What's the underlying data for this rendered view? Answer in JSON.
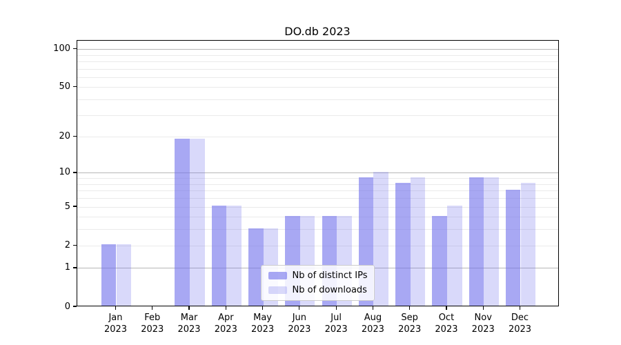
{
  "chart_data": {
    "type": "bar",
    "title": "DO.db 2023",
    "year": "2023",
    "categories": [
      "Jan",
      "Feb",
      "Mar",
      "Apr",
      "May",
      "Jun",
      "Jul",
      "Aug",
      "Sep",
      "Oct",
      "Nov",
      "Dec"
    ],
    "series": [
      {
        "name": "Nb of distinct IPs",
        "values": [
          2,
          0,
          19,
          5,
          3,
          4,
          4,
          9,
          8,
          4,
          9,
          7
        ],
        "color": "rgba(110,110,235,0.6)"
      },
      {
        "name": "Nb of downloads",
        "values": [
          2,
          0,
          19,
          5,
          3,
          4,
          4,
          10,
          9,
          5,
          9,
          8
        ],
        "color": "rgba(110,110,235,0.26)"
      }
    ],
    "xlabel": "",
    "ylabel": "",
    "yscale": "log1p",
    "ylim": [
      0,
      117
    ],
    "yticks": [
      0,
      1,
      2,
      5,
      10,
      20,
      50,
      100
    ],
    "major_gridlines": [
      1,
      10,
      100
    ],
    "minor_gridlines": [
      2,
      3,
      4,
      5,
      6,
      7,
      8,
      9,
      20,
      30,
      40,
      50,
      60,
      70,
      80,
      90
    ],
    "grid": true,
    "legend_position": "lower center"
  },
  "colors": {
    "bar_dark": "rgba(110,110,235,0.6)",
    "bar_light": "rgba(110,110,235,0.26)",
    "grid_minor": "#eaeaea",
    "grid_major": "#b6b6b6",
    "axis": "#000000",
    "background": "#ffffff"
  }
}
